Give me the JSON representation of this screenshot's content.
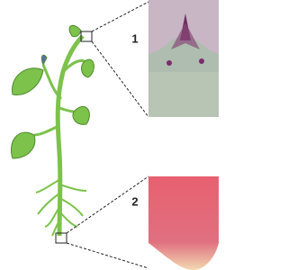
{
  "callouts": [
    {
      "label": "1"
    },
    {
      "label": "2"
    }
  ]
}
